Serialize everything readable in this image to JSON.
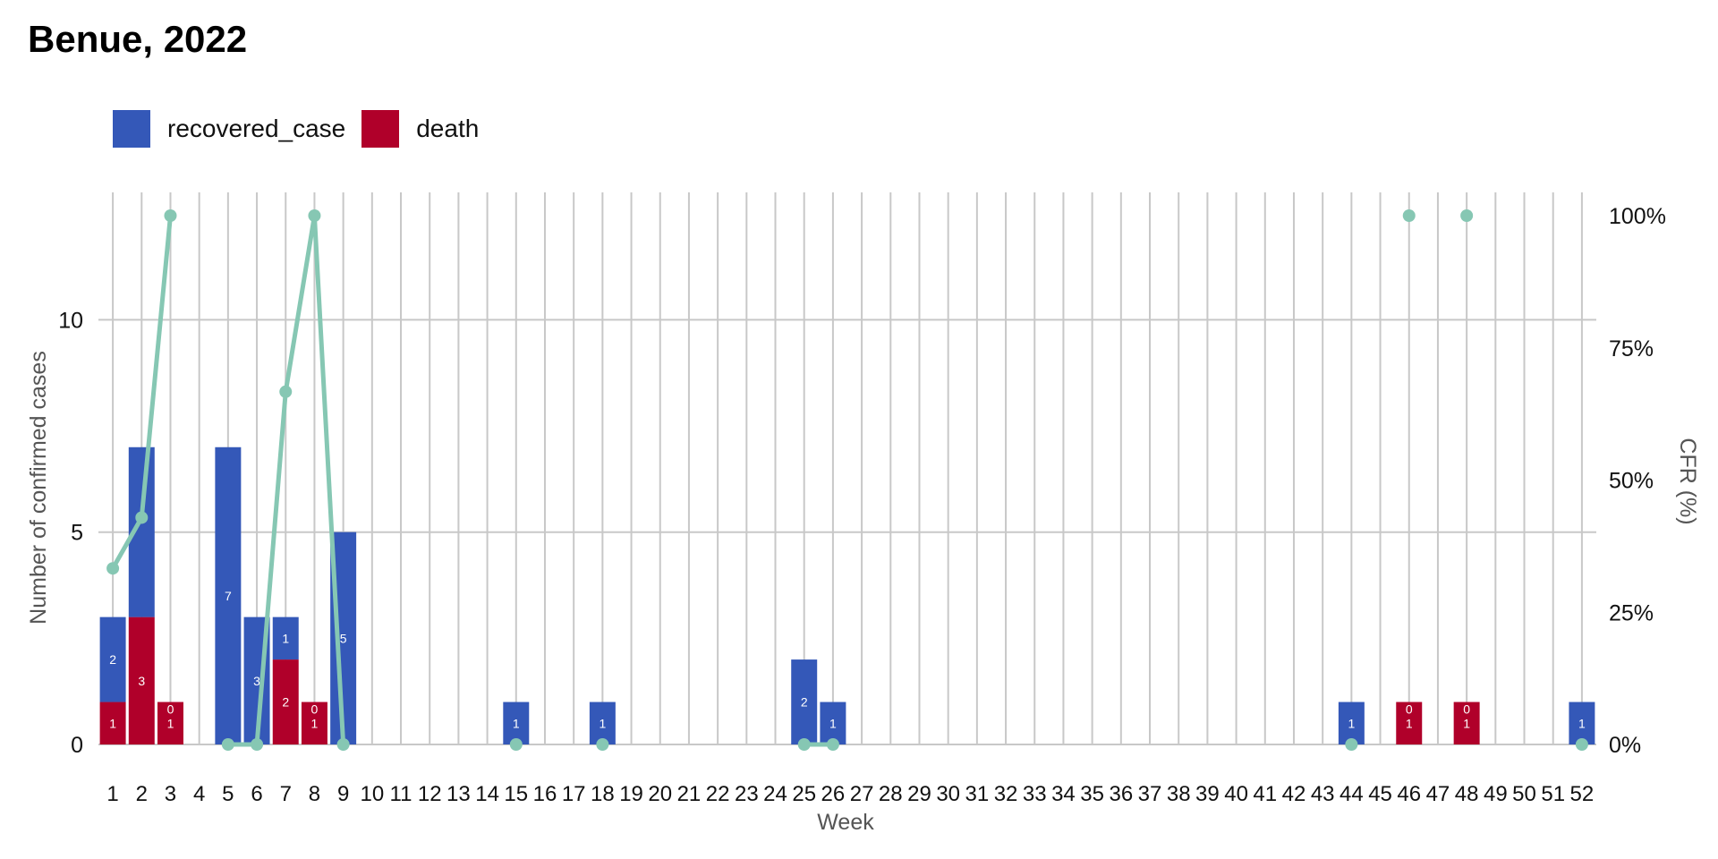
{
  "chart_data": {
    "type": "bar",
    "title": "Benue, 2022",
    "xlabel": "Week",
    "ylabel": "Number of confirmed cases",
    "y2label": "CFR (%)",
    "ylim": [
      0,
      13
    ],
    "y2lim": [
      0,
      100
    ],
    "yticks": [
      0,
      5,
      10
    ],
    "y2ticks": [
      "0%",
      "25%",
      "50%",
      "75%",
      "100%"
    ],
    "grid": true,
    "legend_position": "top-left",
    "categories": [
      "1",
      "2",
      "3",
      "4",
      "5",
      "6",
      "7",
      "8",
      "9",
      "10",
      "11",
      "12",
      "13",
      "14",
      "15",
      "16",
      "17",
      "18",
      "19",
      "20",
      "21",
      "22",
      "23",
      "24",
      "25",
      "26",
      "27",
      "28",
      "29",
      "30",
      "31",
      "32",
      "33",
      "34",
      "35",
      "36",
      "37",
      "38",
      "39",
      "40",
      "41",
      "42",
      "43",
      "44",
      "45",
      "46",
      "47",
      "48",
      "49",
      "50",
      "51",
      "52"
    ],
    "series": [
      {
        "name": "recovered_case",
        "color": "#3458b8",
        "values": [
          2,
          4,
          0,
          0,
          7,
          3,
          1,
          0,
          5,
          0,
          0,
          0,
          0,
          0,
          1,
          0,
          0,
          1,
          0,
          0,
          0,
          0,
          0,
          0,
          2,
          1,
          0,
          0,
          0,
          0,
          0,
          0,
          0,
          0,
          0,
          0,
          0,
          0,
          0,
          0,
          0,
          0,
          0,
          1,
          0,
          0,
          0,
          0,
          0,
          0,
          0,
          1
        ],
        "labels": [
          "2",
          "",
          "0",
          "",
          "7",
          "3",
          "1",
          "0",
          "5",
          "",
          "",
          "",
          "",
          "",
          "1",
          "",
          "",
          "1",
          "",
          "",
          "",
          "",
          "",
          "",
          "2",
          "1",
          "",
          "",
          "",
          "",
          "",
          "",
          "",
          "",
          "",
          "",
          "",
          "",
          "",
          "",
          "",
          "",
          "",
          "1",
          "",
          "0",
          "",
          "0",
          "",
          "",
          "",
          "1"
        ]
      },
      {
        "name": "death",
        "color": "#b0002a",
        "values": [
          1,
          3,
          1,
          0,
          0,
          0,
          2,
          1,
          0,
          0,
          0,
          0,
          0,
          0,
          0,
          0,
          0,
          0,
          0,
          0,
          0,
          0,
          0,
          0,
          0,
          0,
          0,
          0,
          0,
          0,
          0,
          0,
          0,
          0,
          0,
          0,
          0,
          0,
          0,
          0,
          0,
          0,
          0,
          0,
          0,
          1,
          0,
          1,
          0,
          0,
          0,
          0
        ],
        "labels": [
          "1",
          "3",
          "1",
          "",
          "",
          "",
          "2",
          "1",
          "",
          "",
          "",
          "",
          "",
          "",
          "",
          "",
          "",
          "",
          "",
          "",
          "",
          "",
          "",
          "",
          "",
          "",
          "",
          "",
          "",
          "",
          "",
          "",
          "",
          "",
          "",
          "",
          "",
          "",
          "",
          "",
          "",
          "",
          "",
          "",
          "",
          "1",
          "",
          "1",
          "",
          "",
          "",
          ""
        ]
      }
    ],
    "cfr_line": {
      "name": "CFR",
      "color": "#86c7b3",
      "segments": [
        [
          {
            "x": 1,
            "y": 33.3
          },
          {
            "x": 2,
            "y": 42.9
          },
          {
            "x": 3,
            "y": 100
          }
        ],
        [
          {
            "x": 5,
            "y": 0
          },
          {
            "x": 6,
            "y": 0
          },
          {
            "x": 7,
            "y": 66.7
          },
          {
            "x": 8,
            "y": 100
          },
          {
            "x": 9,
            "y": 0
          }
        ],
        [
          {
            "x": 15,
            "y": 0
          }
        ],
        [
          {
            "x": 18,
            "y": 0
          }
        ],
        [
          {
            "x": 25,
            "y": 0
          },
          {
            "x": 26,
            "y": 0
          }
        ],
        [
          {
            "x": 44,
            "y": 0
          }
        ],
        [
          {
            "x": 46,
            "y": 100
          }
        ],
        [
          {
            "x": 48,
            "y": 100
          }
        ],
        [
          {
            "x": 52,
            "y": 0
          }
        ]
      ]
    }
  }
}
